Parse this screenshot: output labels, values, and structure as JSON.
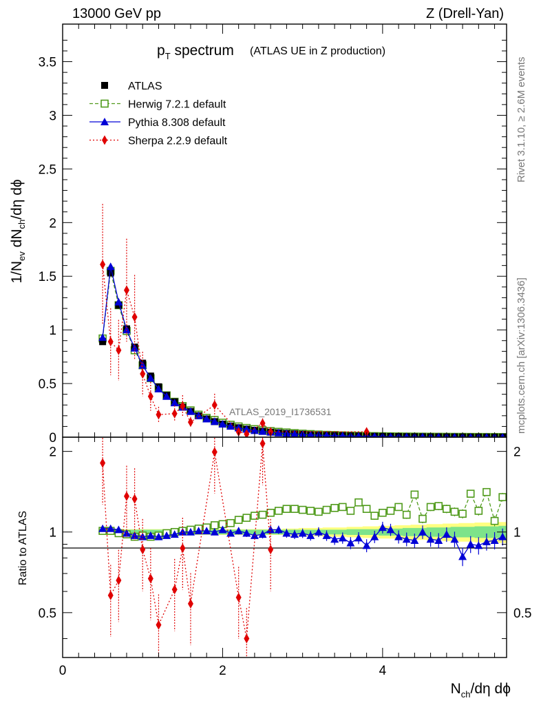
{
  "header": {
    "left": "13000 GeV pp",
    "right": "Z (Drell-Yan)"
  },
  "side_labels": {
    "rivet": "Rivet 3.1.10, ≥ 2.6M events",
    "mcplots": "mcplots.cern.ch [arXiv:1306.3436]"
  },
  "watermark": "ATLAS_2019_I1736531",
  "colors": {
    "data": "#000000",
    "herwig": "#4f9a1a",
    "pythia": "#0000d6",
    "sherpa": "#e00000",
    "band_inner": "#7de38a",
    "band_outer": "#ffff80"
  },
  "chart_data": [
    {
      "type": "scatter",
      "panel": "main",
      "title_main": "p",
      "title_sub": "T",
      "title_rest": " spectrum",
      "title_note": "(ATLAS UE in Z production)",
      "xlim": [
        0,
        5.55
      ],
      "ylim": [
        0,
        3.85
      ],
      "xlabel": "N",
      "xlabel_sub": "ch",
      "xlabel_rest": "/dη dϕ",
      "ylabel_parts": [
        "1/N",
        "ev",
        " dN",
        "ch",
        "/dη dϕ"
      ],
      "yticks": [
        "0",
        "0.5",
        "1",
        "1.5",
        "2",
        "2.5",
        "3",
        "3.5"
      ],
      "legend": [
        {
          "name": "ATLAS",
          "style": "square"
        },
        {
          "name": "Herwig 7.2.1 default",
          "style": "open-square-dashed"
        },
        {
          "name": "Pythia 8.308 default",
          "style": "triangle-solid"
        },
        {
          "name": "Sherpa 2.2.9 default",
          "style": "diamond-dotted"
        }
      ],
      "x": [
        0.5,
        0.6,
        0.7,
        0.8,
        0.9,
        1.0,
        1.1,
        1.2,
        1.3,
        1.4,
        1.5,
        1.6,
        1.7,
        1.8,
        1.9,
        2.0,
        2.1,
        2.2,
        2.3,
        2.4,
        2.5,
        2.6,
        2.7,
        2.8,
        2.9,
        3.0,
        3.1,
        3.2,
        3.3,
        3.4,
        3.5,
        3.6,
        3.7,
        3.8,
        3.9,
        4.0,
        4.1,
        4.2,
        4.3,
        4.4,
        4.5,
        4.6,
        4.7,
        4.8,
        4.9,
        5.0,
        5.1,
        5.2,
        5.3,
        5.4,
        5.5
      ],
      "series": [
        {
          "name": "ATLAS",
          "values": [
            0.89,
            1.53,
            1.23,
            1.01,
            0.84,
            0.69,
            0.57,
            0.47,
            0.39,
            0.33,
            0.28,
            0.24,
            0.2,
            0.17,
            0.145,
            0.122,
            0.104,
            0.088,
            0.075,
            0.064,
            0.055,
            0.047,
            0.041,
            0.035,
            0.031,
            0.027,
            0.023,
            0.02,
            0.018,
            0.016,
            0.014,
            0.012,
            0.011,
            0.0095,
            0.0085,
            0.0075,
            0.0066,
            0.0058,
            0.0052,
            0.0046,
            0.0041,
            0.0036,
            0.0032,
            0.0029,
            0.0026,
            0.0023,
            0.002,
            0.0018,
            0.0016,
            0.0014,
            0.0013
          ]
        },
        {
          "name": "Herwig 7.2.1 default",
          "values": [
            0.92,
            1.55,
            1.23,
            0.99,
            0.81,
            0.67,
            0.55,
            0.46,
            0.39,
            0.33,
            0.29,
            0.25,
            0.21,
            0.18,
            0.16,
            0.135,
            0.116,
            0.1,
            0.086,
            0.075,
            0.065,
            0.057,
            0.05,
            0.044,
            0.038,
            0.033,
            0.029,
            0.025,
            0.022,
            0.02,
            0.017,
            0.015,
            0.013,
            0.012,
            0.01,
            0.009,
            0.008,
            0.007,
            0.0062,
            0.0056,
            0.005,
            0.0044,
            0.004,
            0.0035,
            0.0031,
            0.0028,
            0.0025,
            0.0022,
            0.002,
            0.0018,
            0.0016
          ]
        },
        {
          "name": "Pythia 8.308 default",
          "values": [
            0.93,
            1.59,
            1.26,
            1.0,
            0.83,
            0.67,
            0.55,
            0.45,
            0.38,
            0.32,
            0.28,
            0.24,
            0.2,
            0.17,
            0.146,
            0.122,
            0.102,
            0.087,
            0.074,
            0.062,
            0.054,
            0.047,
            0.04,
            0.034,
            0.03,
            0.026,
            0.022,
            0.019,
            0.017,
            0.014,
            0.013,
            0.011,
            0.0095,
            0.0085,
            0.0075,
            0.0068,
            0.006,
            0.0052,
            0.0047,
            0.0042,
            0.0037,
            0.0033,
            0.003,
            0.0027,
            0.0023,
            0.002,
            0.0018,
            0.0016,
            0.0015,
            0.0013,
            0.0012
          ]
        },
        {
          "name": "Sherpa 2.2.9 default",
          "values": [
            1.61,
            0.89,
            0.81,
            1.37,
            1.12,
            0.59,
            0.38,
            0.21,
            null,
            0.22,
            0.29,
            0.14,
            null,
            null,
            0.3,
            null,
            null,
            0.05,
            0.03,
            null,
            0.13,
            0.05,
            null,
            null,
            null,
            null,
            null,
            null,
            null,
            null,
            null,
            null,
            null,
            0.05,
            null,
            null,
            null,
            null,
            null,
            null,
            null,
            null,
            null,
            null,
            null,
            null,
            null,
            null,
            null,
            null,
            null
          ]
        }
      ]
    },
    {
      "type": "scatter",
      "panel": "ratio",
      "ylabel": "Ratio to ATLAS",
      "ylim": [
        0.34,
        2.26
      ],
      "yticks": [
        "0.5",
        "1",
        "2"
      ],
      "xticks": [
        "0",
        "2",
        "4"
      ],
      "x": [
        0.5,
        0.6,
        0.7,
        0.8,
        0.9,
        1.0,
        1.1,
        1.2,
        1.3,
        1.4,
        1.5,
        1.6,
        1.7,
        1.8,
        1.9,
        2.0,
        2.1,
        2.2,
        2.3,
        2.4,
        2.5,
        2.6,
        2.7,
        2.8,
        2.9,
        3.0,
        3.1,
        3.2,
        3.3,
        3.4,
        3.5,
        3.6,
        3.7,
        3.8,
        3.9,
        4.0,
        4.1,
        4.2,
        4.3,
        4.4,
        4.5,
        4.6,
        4.7,
        4.8,
        4.9,
        5.0,
        5.1,
        5.2,
        5.3,
        5.4,
        5.5
      ],
      "band": {
        "inner": [
          0.02,
          0.02,
          0.02,
          0.02,
          0.02,
          0.02,
          0.02,
          0.02,
          0.02,
          0.02,
          0.02,
          0.02,
          0.02,
          0.02,
          0.02,
          0.02,
          0.02,
          0.02,
          0.02,
          0.02,
          0.02,
          0.02,
          0.02,
          0.02,
          0.02,
          0.02,
          0.02,
          0.02,
          0.02,
          0.02,
          0.02,
          0.025,
          0.025,
          0.025,
          0.025,
          0.03,
          0.03,
          0.03,
          0.035,
          0.035,
          0.035,
          0.04,
          0.04,
          0.04,
          0.045,
          0.045,
          0.045,
          0.05,
          0.05,
          0.05,
          0.055
        ],
        "outer": [
          0.025,
          0.025,
          0.025,
          0.025,
          0.025,
          0.025,
          0.025,
          0.025,
          0.025,
          0.025,
          0.025,
          0.025,
          0.025,
          0.025,
          0.025,
          0.025,
          0.025,
          0.025,
          0.025,
          0.025,
          0.025,
          0.025,
          0.025,
          0.03,
          0.03,
          0.035,
          0.035,
          0.035,
          0.04,
          0.04,
          0.04,
          0.045,
          0.045,
          0.05,
          0.05,
          0.055,
          0.055,
          0.06,
          0.06,
          0.065,
          0.065,
          0.07,
          0.07,
          0.075,
          0.075,
          0.08,
          0.08,
          0.085,
          0.085,
          0.09,
          0.09
        ]
      },
      "series": [
        {
          "name": "Herwig 7.2.1 default",
          "values": [
            1.01,
            1.01,
            0.99,
            0.98,
            0.96,
            0.97,
            0.96,
            0.97,
            0.99,
            1.0,
            1.01,
            1.02,
            1.03,
            1.04,
            1.06,
            1.07,
            1.08,
            1.11,
            1.13,
            1.15,
            1.16,
            1.18,
            1.2,
            1.22,
            1.22,
            1.21,
            1.2,
            1.19,
            1.21,
            1.23,
            1.24,
            1.2,
            1.29,
            1.22,
            1.15,
            1.18,
            1.2,
            1.24,
            1.16,
            1.38,
            1.12,
            1.24,
            1.25,
            1.22,
            1.19,
            1.17,
            1.39,
            1.2,
            1.41,
            1.1,
            1.35
          ]
        },
        {
          "name": "Pythia 8.308 default",
          "values": [
            1.03,
            1.03,
            1.02,
            0.99,
            0.97,
            0.96,
            0.97,
            0.96,
            0.97,
            0.98,
            1.0,
            1.0,
            1.01,
            1.01,
            1.0,
            1.02,
            0.99,
            1.01,
            0.99,
            0.97,
            0.98,
            1.02,
            1.02,
            0.99,
            0.98,
            0.99,
            0.97,
            1.0,
            0.97,
            0.94,
            0.95,
            0.91,
            0.95,
            0.89,
            0.96,
            1.04,
            1.02,
            0.96,
            0.94,
            0.93,
            1.0,
            0.94,
            0.93,
            0.98,
            0.94,
            0.81,
            0.9,
            0.89,
            0.92,
            0.93,
            0.96
          ]
        },
        {
          "name": "Sherpa 2.2.9 default",
          "values": [
            1.81,
            0.58,
            0.66,
            1.36,
            1.33,
            0.86,
            0.67,
            0.45,
            null,
            0.61,
            0.87,
            0.54,
            null,
            null,
            1.99,
            null,
            null,
            0.57,
            0.4,
            null,
            2.14,
            0.86,
            null,
            null,
            null,
            null,
            null,
            null,
            null,
            null,
            null,
            null,
            null,
            null,
            null,
            null,
            null,
            null,
            null,
            null,
            null,
            null,
            null,
            null,
            null,
            null,
            null,
            null,
            null,
            null,
            null
          ]
        }
      ]
    }
  ]
}
